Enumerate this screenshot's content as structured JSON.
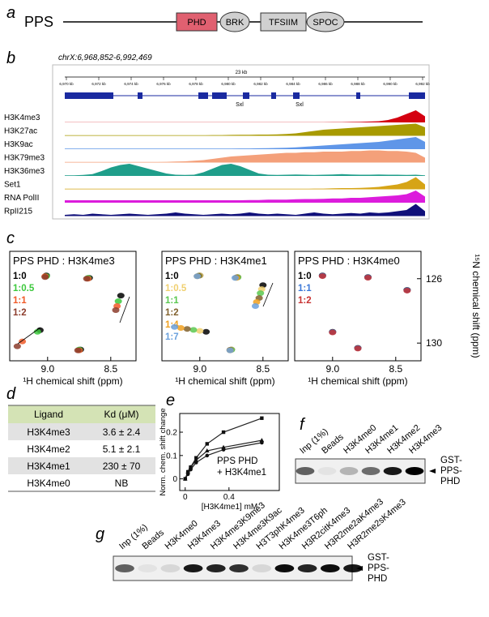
{
  "panel_a": {
    "label": "a",
    "protein": "PPS",
    "domains": [
      "PHD",
      "BRK",
      "TFSIIM",
      "SPOC"
    ]
  },
  "panel_b": {
    "label": "b",
    "locus": "chrX:6,968,852-6,992,469",
    "scale": "23 kb",
    "ticks": [
      "6,970 kb",
      "6,972 kb",
      "6,974 kb",
      "6,976 kb",
      "6,978 kb",
      "6,980 kb",
      "6,982 kb",
      "6,984 kb",
      "6,986 kb",
      "6,988 kb",
      "6,990 kb",
      "6,992 kb"
    ],
    "genes": [
      "Sxl",
      "Sxl"
    ],
    "tracks": [
      {
        "name": "H3K4me3",
        "color": "#d40010",
        "profile": [
          0.02,
          0.02,
          0.02,
          0.02,
          0.02,
          0.02,
          0.02,
          0.02,
          0.02,
          0.02,
          0.02,
          0.02,
          0.02,
          0.02,
          0.02,
          0.02,
          0.02,
          0.02,
          0.02,
          0.02,
          0.02,
          0.02,
          0.02,
          0.02,
          0.02,
          0.02,
          0.02,
          0.02,
          0.02,
          0.03,
          0.03,
          0.04,
          0.05,
          0.07,
          0.1,
          0.2,
          0.4,
          0.7,
          1.0,
          0.5
        ]
      },
      {
        "name": "H3K27ac",
        "color": "#a89a00",
        "profile": [
          0.05,
          0.05,
          0.05,
          0.05,
          0.05,
          0.05,
          0.05,
          0.05,
          0.05,
          0.05,
          0.05,
          0.05,
          0.05,
          0.05,
          0.05,
          0.05,
          0.06,
          0.06,
          0.07,
          0.08,
          0.08,
          0.1,
          0.1,
          0.12,
          0.15,
          0.2,
          0.3,
          0.4,
          0.5,
          0.55,
          0.6,
          0.65,
          0.7,
          0.75,
          0.8,
          0.85,
          0.9,
          0.95,
          1.0,
          0.7
        ]
      },
      {
        "name": "H3K9ac",
        "color": "#5f96e8",
        "profile": [
          0.05,
          0.05,
          0.05,
          0.05,
          0.05,
          0.05,
          0.05,
          0.05,
          0.05,
          0.05,
          0.05,
          0.05,
          0.05,
          0.05,
          0.05,
          0.05,
          0.05,
          0.05,
          0.05,
          0.06,
          0.06,
          0.07,
          0.08,
          0.1,
          0.12,
          0.15,
          0.2,
          0.25,
          0.3,
          0.35,
          0.4,
          0.45,
          0.5,
          0.55,
          0.6,
          0.7,
          0.8,
          0.9,
          1.0,
          0.6
        ]
      },
      {
        "name": "H3K79me3",
        "color": "#f4a07a",
        "profile": [
          0.05,
          0.05,
          0.05,
          0.05,
          0.05,
          0.05,
          0.05,
          0.05,
          0.05,
          0.05,
          0.05,
          0.06,
          0.08,
          0.1,
          0.15,
          0.2,
          0.3,
          0.4,
          0.5,
          0.55,
          0.6,
          0.65,
          0.7,
          0.75,
          0.8,
          0.8,
          0.85,
          0.85,
          0.9,
          0.9,
          0.9,
          0.95,
          0.95,
          1.0,
          1.0,
          0.95,
          0.95,
          0.9,
          0.8,
          0.4
        ]
      },
      {
        "name": "H3K36me3",
        "color": "#1f9e8a",
        "profile": [
          0.05,
          0.05,
          0.08,
          0.15,
          0.4,
          0.7,
          0.9,
          1.0,
          0.8,
          0.6,
          0.4,
          0.2,
          0.1,
          0.08,
          0.1,
          0.3,
          0.6,
          0.9,
          1.0,
          0.8,
          0.5,
          0.2,
          0.1,
          0.08,
          0.1,
          0.12,
          0.1,
          0.08,
          0.1,
          0.12,
          0.15,
          0.12,
          0.1,
          0.1,
          0.12,
          0.1,
          0.1,
          0.08,
          0.1,
          0.05
        ]
      },
      {
        "name": "Set1",
        "color": "#d6a416",
        "profile": [
          0.05,
          0.05,
          0.05,
          0.05,
          0.05,
          0.05,
          0.05,
          0.05,
          0.05,
          0.05,
          0.05,
          0.05,
          0.05,
          0.05,
          0.05,
          0.05,
          0.05,
          0.05,
          0.05,
          0.05,
          0.05,
          0.05,
          0.05,
          0.05,
          0.05,
          0.05,
          0.05,
          0.06,
          0.06,
          0.08,
          0.1,
          0.1,
          0.12,
          0.15,
          0.2,
          0.3,
          0.4,
          0.6,
          1.0,
          0.4
        ]
      },
      {
        "name": "RNA PolII",
        "color": "#dc1cdc",
        "profile": [
          0.2,
          0.2,
          0.2,
          0.2,
          0.2,
          0.2,
          0.2,
          0.2,
          0.2,
          0.2,
          0.2,
          0.2,
          0.2,
          0.2,
          0.2,
          0.2,
          0.2,
          0.2,
          0.2,
          0.2,
          0.22,
          0.22,
          0.25,
          0.25,
          0.25,
          0.28,
          0.3,
          0.3,
          0.32,
          0.35,
          0.35,
          0.4,
          0.4,
          0.45,
          0.5,
          0.55,
          0.6,
          0.7,
          1.0,
          0.5
        ]
      },
      {
        "name": "RpII215",
        "color": "#10107a",
        "profile": [
          0.1,
          0.15,
          0.1,
          0.2,
          0.15,
          0.1,
          0.15,
          0.2,
          0.15,
          0.1,
          0.15,
          0.2,
          0.3,
          0.2,
          0.15,
          0.1,
          0.15,
          0.2,
          0.15,
          0.2,
          0.3,
          0.2,
          0.15,
          0.2,
          0.15,
          0.1,
          0.2,
          0.3,
          0.2,
          0.15,
          0.2,
          0.25,
          0.2,
          0.3,
          0.25,
          0.3,
          0.4,
          0.5,
          1.0,
          0.4
        ]
      }
    ]
  },
  "panel_c": {
    "label": "c",
    "x_label": "¹H chemical shift (ppm)",
    "y_label": "¹⁵N chemical shift (ppm)",
    "xlim": [
      9.3,
      8.3
    ],
    "ylim": [
      124.3,
      131.1
    ],
    "xticks": [
      {
        "value": 9,
        "label": "9.0"
      },
      8.5
    ],
    "yticks": [
      126,
      130
    ],
    "panels": [
      {
        "title": "PPS PHD : H3K4me3",
        "series": [
          {
            "name": "1:0",
            "color": "#000000",
            "points": [
              [
                9.01,
                125.8
              ],
              [
                8.67,
                125.95
              ],
              [
                8.42,
                127.05
              ],
              [
                9.06,
                129.2
              ],
              [
                8.74,
                130.4
              ]
            ]
          },
          {
            "name": "1:0.5",
            "color": "#3cc83c",
            "points": [
              [
                9.01,
                125.85
              ],
              [
                8.68,
                125.95
              ],
              [
                8.44,
                127.4
              ],
              [
                9.08,
                129.3
              ],
              [
                8.75,
                130.4
              ]
            ]
          },
          {
            "name": "1:1",
            "color": "#f05a28",
            "points": [
              [
                9.02,
                125.85
              ],
              [
                8.68,
                126.0
              ],
              [
                8.45,
                127.7
              ],
              [
                9.2,
                129.9
              ],
              [
                8.75,
                130.45
              ]
            ]
          },
          {
            "name": "1:2",
            "color": "#8c3c2c",
            "points": [
              [
                9.02,
                125.9
              ],
              [
                8.69,
                126.0
              ],
              [
                8.46,
                127.95
              ],
              [
                9.24,
                130.2
              ],
              [
                8.76,
                130.45
              ]
            ]
          }
        ]
      },
      {
        "title": "PPS PHD : H3K4me1",
        "series": [
          {
            "name": "1:0",
            "color": "#000000",
            "points": [
              [
                9.0,
                125.8
              ],
              [
                8.7,
                125.9
              ],
              [
                8.5,
                126.4
              ],
              [
                8.95,
                129.3
              ],
              [
                8.75,
                130.4
              ]
            ]
          },
          {
            "name": "1:0.5",
            "color": "#f0d070",
            "points": [
              [
                9.0,
                125.8
              ],
              [
                8.7,
                125.9
              ],
              [
                8.51,
                126.65
              ],
              [
                9.0,
                129.24
              ],
              [
                8.75,
                130.4
              ]
            ]
          },
          {
            "name": "1:1",
            "color": "#5ac850",
            "points": [
              [
                9.01,
                125.82
              ],
              [
                8.7,
                125.92
              ],
              [
                8.52,
                126.9
              ],
              [
                9.05,
                129.18
              ],
              [
                8.75,
                130.42
              ]
            ]
          },
          {
            "name": "1:2",
            "color": "#80602c",
            "points": [
              [
                9.01,
                125.82
              ],
              [
                8.71,
                125.92
              ],
              [
                8.53,
                127.2
              ],
              [
                9.1,
                129.12
              ],
              [
                8.76,
                130.42
              ]
            ]
          },
          {
            "name": "1:4",
            "color": "#f0a020",
            "points": [
              [
                9.02,
                125.85
              ],
              [
                8.71,
                125.95
              ],
              [
                8.55,
                127.45
              ],
              [
                9.15,
                129.06
              ],
              [
                8.76,
                130.45
              ]
            ]
          },
          {
            "name": "1:7",
            "color": "#6aa0dc",
            "points": [
              [
                9.02,
                125.85
              ],
              [
                8.72,
                125.95
              ],
              [
                8.56,
                127.7
              ],
              [
                9.2,
                129.0
              ],
              [
                8.76,
                130.45
              ]
            ]
          }
        ]
      },
      {
        "title": "PPS PHD : H3K4me0",
        "series": [
          {
            "name": "1:0",
            "color": "#000000",
            "points": [
              [
                9.08,
                125.8
              ],
              [
                8.72,
                125.9
              ],
              [
                8.41,
                126.7
              ],
              [
                9.0,
                129.3
              ],
              [
                8.8,
                130.3
              ]
            ]
          },
          {
            "name": "1:1",
            "color": "#3c78d8",
            "points": [
              [
                9.08,
                125.82
              ],
              [
                8.72,
                125.92
              ],
              [
                8.41,
                126.72
              ],
              [
                9.0,
                129.32
              ],
              [
                8.8,
                130.32
              ]
            ]
          },
          {
            "name": "1:2",
            "color": "#c83232",
            "points": [
              [
                9.08,
                125.84
              ],
              [
                8.72,
                125.94
              ],
              [
                8.41,
                126.74
              ],
              [
                9.0,
                129.34
              ],
              [
                8.8,
                130.34
              ]
            ]
          }
        ]
      }
    ]
  },
  "panel_d": {
    "label": "d",
    "header": [
      "Ligand",
      "Kd (μM)"
    ],
    "rows": [
      [
        "H3K4me3",
        "3.6 ± 2.4"
      ],
      [
        "H3K4me2",
        "5.1 ± 2.1"
      ],
      [
        "H3K4me1",
        "230 ± 70"
      ],
      [
        "H3K4me0",
        "NB"
      ]
    ]
  },
  "panel_e": {
    "label": "e",
    "chart": {
      "type": "scatter",
      "x_label": "[H3K4me1] mM",
      "y_label": "Norm. chem. shift change",
      "xlim": [
        -0.05,
        0.86
      ],
      "ylim": [
        -0.05,
        0.28
      ],
      "xticks": [
        0,
        0.4
      ],
      "yticks": [
        0,
        0.1,
        0.2
      ],
      "annotation": [
        "PPS PHD",
        "+ H3K4me1"
      ],
      "x": [
        0,
        0.025,
        0.05,
        0.1,
        0.2,
        0.35,
        0.7
      ],
      "series": [
        {
          "marker": "square",
          "values": [
            0,
            0.03,
            0.05,
            0.09,
            0.15,
            0.2,
            0.26
          ]
        },
        {
          "marker": "triangle",
          "values": [
            0,
            0.03,
            0.05,
            0.08,
            0.12,
            0.135,
            0.165
          ]
        },
        {
          "marker": "circle",
          "values": [
            0,
            0.02,
            0.04,
            0.07,
            0.1,
            0.125,
            0.155
          ]
        }
      ]
    }
  },
  "panel_f": {
    "label": "f",
    "lanes": [
      "Inp (1%)",
      "Beads",
      "H3K4me0",
      "H3K4me1",
      "H3K4me2",
      "H3K4me3"
    ],
    "band_intensity": [
      0.6,
      0.05,
      0.25,
      0.55,
      0.9,
      1.0
    ],
    "protein_label": [
      "GST-",
      "PPS-",
      "PHD"
    ]
  },
  "panel_g": {
    "label": "g",
    "lanes": [
      "Inp (1%)",
      "Beads",
      "H3K4me0",
      "H3K4me3",
      "H3K4me3K9me3",
      "H3K4me3K9ac",
      "H3T3phK4me3",
      "H3K4me3T6ph",
      "H3R2citK4me3",
      "H3R2me2aK4me3",
      "H3R2me2sK4me3"
    ],
    "band_intensity": [
      0.6,
      0.05,
      0.1,
      0.9,
      0.85,
      0.8,
      0.1,
      0.95,
      0.85,
      0.95,
      0.9
    ],
    "protein_label": [
      "GST-",
      "PPS-",
      "PHD"
    ]
  }
}
